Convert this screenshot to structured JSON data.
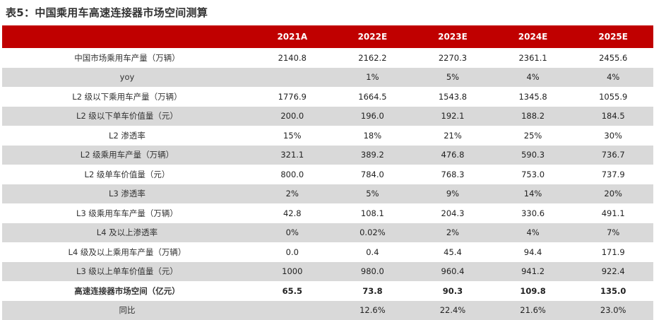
{
  "title": "表5：中国乘用车高速连接器市场空间测算",
  "header": [
    "",
    "2021A",
    "2022E",
    "2023E",
    "2024E",
    "2025E"
  ],
  "rows": [
    {
      "label": "中国市场乘用车产量（万辆）",
      "values": [
        "2140.8",
        "2162.2",
        "2270.3",
        "2361.1",
        "2455.6"
      ]
    },
    {
      "label": "yoy",
      "values": [
        "",
        "1%",
        "5%",
        "4%",
        "4%"
      ]
    },
    {
      "label": "L2 级以下乘用车产量（万辆）",
      "values": [
        "1776.9",
        "1664.5",
        "1543.8",
        "1345.8",
        "1055.9"
      ]
    },
    {
      "label": "L2 级以下单车价值量（元）",
      "values": [
        "200.0",
        "196.0",
        "192.1",
        "188.2",
        "184.5"
      ]
    },
    {
      "label": "L2 渗透率",
      "values": [
        "15%",
        "18%",
        "21%",
        "25%",
        "30%"
      ]
    },
    {
      "label": "L2 级乘用车产量（万辆）",
      "values": [
        "321.1",
        "389.2",
        "476.8",
        "590.3",
        "736.7"
      ]
    },
    {
      "label": "L2 级单车价值量（元）",
      "values": [
        "800.0",
        "784.0",
        "768.3",
        "753.0",
        "737.9"
      ]
    },
    {
      "label": "L3 渗透率",
      "values": [
        "2%",
        "5%",
        "9%",
        "14%",
        "20%"
      ]
    },
    {
      "label": "L3 级乘用车车产量（万辆）",
      "values": [
        "42.8",
        "108.1",
        "204.3",
        "330.6",
        "491.1"
      ]
    },
    {
      "label": "L4 及以上渗透率",
      "values": [
        "0%",
        "0.02%",
        "2%",
        "4%",
        "7%"
      ]
    },
    {
      "label": "L4 级及以上乘用车产量（万辆）",
      "values": [
        "0.0",
        "0.4",
        "45.4",
        "94.4",
        "171.9"
      ]
    },
    {
      "label": "L3 级以上单车价值量（元）",
      "values": [
        "1000",
        "980.0",
        "960.4",
        "941.2",
        "922.4"
      ]
    },
    {
      "label": "高速连接器市场空间（亿元）",
      "values": [
        "65.5",
        "73.8",
        "90.3",
        "109.8",
        "135.0"
      ],
      "bold": true
    },
    {
      "label": "同比",
      "values": [
        "",
        "12.6%",
        "22.4%",
        "21.6%",
        "23.0%"
      ]
    }
  ]
}
